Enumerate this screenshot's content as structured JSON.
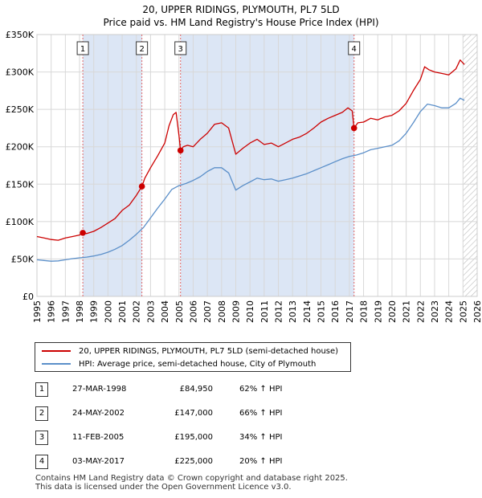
{
  "header": {
    "title": "20, UPPER RIDINGS, PLYMOUTH, PL7 5LD",
    "subtitle": "Price paid vs. HM Land Registry's House Price Index (HPI)"
  },
  "legend": {
    "property": "20, UPPER RIDINGS, PLYMOUTH, PL7 5LD (semi-detached house)",
    "hpi": "HPI: Average price, semi-detached house, City of Plymouth"
  },
  "colors": {
    "property": "#cc0000",
    "hpi": "#5b8fc9",
    "shade": "#dce6f5",
    "grid": "#d8d8d8",
    "marker_line": "#e06666"
  },
  "sales": [
    {
      "num": "1",
      "date": "27-MAR-1998",
      "price": "£84,950",
      "delta": "62% ↑ HPI"
    },
    {
      "num": "2",
      "date": "24-MAY-2002",
      "price": "£147,000",
      "delta": "66% ↑ HPI"
    },
    {
      "num": "3",
      "date": "11-FEB-2005",
      "price": "£195,000",
      "delta": "34% ↑ HPI"
    },
    {
      "num": "4",
      "date": "03-MAY-2017",
      "price": "£225,000",
      "delta": "20% ↑ HPI"
    }
  ],
  "footer": {
    "line1": "Contains HM Land Registry data © Crown copyright and database right 2025.",
    "line2": "This data is licensed under the Open Government Licence v3.0."
  },
  "chart_data": {
    "type": "line",
    "title": "20, UPPER RIDINGS, PLYMOUTH, PL7 5LD",
    "subtitle": "Price paid vs. HM Land Registry's House Price Index (HPI)",
    "xlabel": "",
    "ylabel": "",
    "xlim": [
      1995,
      2026
    ],
    "ylim": [
      0,
      350000
    ],
    "x_ticks": [
      1995,
      1996,
      1997,
      1998,
      1999,
      2000,
      2001,
      2002,
      2003,
      2004,
      2005,
      2006,
      2007,
      2008,
      2009,
      2010,
      2011,
      2012,
      2013,
      2014,
      2015,
      2016,
      2017,
      2018,
      2019,
      2020,
      2021,
      2022,
      2023,
      2024,
      2025,
      2026
    ],
    "y_ticks": [
      {
        "value": 0,
        "label": "£0"
      },
      {
        "value": 50000,
        "label": "£50K"
      },
      {
        "value": 100000,
        "label": "£100K"
      },
      {
        "value": 150000,
        "label": "£150K"
      },
      {
        "value": 200000,
        "label": "£200K"
      },
      {
        "value": 250000,
        "label": "£250K"
      },
      {
        "value": 300000,
        "label": "£300K"
      },
      {
        "value": 350000,
        "label": "£350K"
      }
    ],
    "grid": true,
    "shaded_ranges": [
      [
        1998.23,
        2002.39
      ],
      [
        2005.11,
        2017.33
      ]
    ],
    "hatched_from": 2025.0,
    "markers": [
      {
        "label": "1",
        "x": 1998.23,
        "y": 84950
      },
      {
        "label": "2",
        "x": 2002.39,
        "y": 147000
      },
      {
        "label": "3",
        "x": 2005.11,
        "y": 195000
      },
      {
        "label": "4",
        "x": 2017.33,
        "y": 225000
      }
    ],
    "series": [
      {
        "name": "20, UPPER RIDINGS, PLYMOUTH, PL7 5LD (semi-detached house)",
        "points": [
          [
            1995.0,
            80000
          ],
          [
            1995.5,
            78000
          ],
          [
            1996.0,
            76000
          ],
          [
            1996.5,
            75000
          ],
          [
            1997.0,
            78000
          ],
          [
            1997.5,
            80000
          ],
          [
            1998.0,
            82000
          ],
          [
            1998.23,
            84950
          ],
          [
            1998.5,
            84000
          ],
          [
            1999.0,
            87000
          ],
          [
            1999.5,
            92000
          ],
          [
            2000.0,
            98000
          ],
          [
            2000.5,
            104000
          ],
          [
            2001.0,
            115000
          ],
          [
            2001.5,
            122000
          ],
          [
            2002.0,
            135000
          ],
          [
            2002.39,
            147000
          ],
          [
            2002.6,
            158000
          ],
          [
            2003.0,
            172000
          ],
          [
            2003.5,
            188000
          ],
          [
            2004.0,
            205000
          ],
          [
            2004.3,
            228000
          ],
          [
            2004.6,
            243000
          ],
          [
            2004.8,
            246000
          ],
          [
            2005.0,
            215000
          ],
          [
            2005.11,
            195000
          ],
          [
            2005.3,
            200000
          ],
          [
            2005.6,
            202000
          ],
          [
            2006.0,
            200000
          ],
          [
            2006.5,
            210000
          ],
          [
            2007.0,
            218000
          ],
          [
            2007.5,
            230000
          ],
          [
            2008.0,
            232000
          ],
          [
            2008.5,
            225000
          ],
          [
            2009.0,
            190000
          ],
          [
            2009.5,
            198000
          ],
          [
            2010.0,
            205000
          ],
          [
            2010.5,
            210000
          ],
          [
            2011.0,
            203000
          ],
          [
            2011.5,
            205000
          ],
          [
            2012.0,
            200000
          ],
          [
            2012.5,
            205000
          ],
          [
            2013.0,
            210000
          ],
          [
            2013.5,
            213000
          ],
          [
            2014.0,
            218000
          ],
          [
            2014.5,
            225000
          ],
          [
            2015.0,
            233000
          ],
          [
            2015.5,
            238000
          ],
          [
            2016.0,
            242000
          ],
          [
            2016.5,
            246000
          ],
          [
            2016.9,
            252000
          ],
          [
            2017.2,
            248000
          ],
          [
            2017.33,
            225000
          ],
          [
            2017.6,
            232000
          ],
          [
            2018.0,
            233000
          ],
          [
            2018.5,
            238000
          ],
          [
            2019.0,
            236000
          ],
          [
            2019.5,
            240000
          ],
          [
            2020.0,
            242000
          ],
          [
            2020.5,
            248000
          ],
          [
            2021.0,
            258000
          ],
          [
            2021.5,
            275000
          ],
          [
            2022.0,
            290000
          ],
          [
            2022.3,
            307000
          ],
          [
            2022.6,
            303000
          ],
          [
            2023.0,
            300000
          ],
          [
            2023.5,
            298000
          ],
          [
            2024.0,
            296000
          ],
          [
            2024.5,
            304000
          ],
          [
            2024.8,
            316000
          ],
          [
            2025.1,
            310000
          ]
        ]
      },
      {
        "name": "HPI: Average price, semi-detached house, City of Plymouth",
        "points": [
          [
            1995.0,
            49000
          ],
          [
            1995.5,
            48000
          ],
          [
            1996.0,
            47000
          ],
          [
            1996.5,
            47500
          ],
          [
            1997.0,
            49000
          ],
          [
            1997.5,
            50500
          ],
          [
            1998.0,
            51500
          ],
          [
            1998.5,
            52500
          ],
          [
            1999.0,
            54000
          ],
          [
            1999.5,
            56000
          ],
          [
            2000.0,
            59000
          ],
          [
            2000.5,
            63000
          ],
          [
            2001.0,
            68000
          ],
          [
            2001.5,
            75000
          ],
          [
            2002.0,
            83000
          ],
          [
            2002.5,
            92000
          ],
          [
            2003.0,
            105000
          ],
          [
            2003.5,
            118000
          ],
          [
            2004.0,
            130000
          ],
          [
            2004.5,
            143000
          ],
          [
            2005.0,
            148000
          ],
          [
            2005.5,
            151000
          ],
          [
            2006.0,
            155000
          ],
          [
            2006.5,
            160000
          ],
          [
            2007.0,
            167000
          ],
          [
            2007.5,
            172000
          ],
          [
            2008.0,
            172000
          ],
          [
            2008.5,
            165000
          ],
          [
            2009.0,
            142000
          ],
          [
            2009.5,
            148000
          ],
          [
            2010.0,
            153000
          ],
          [
            2010.5,
            158000
          ],
          [
            2011.0,
            156000
          ],
          [
            2011.5,
            157000
          ],
          [
            2012.0,
            154000
          ],
          [
            2012.5,
            156000
          ],
          [
            2013.0,
            158000
          ],
          [
            2013.5,
            161000
          ],
          [
            2014.0,
            164000
          ],
          [
            2014.5,
            168000
          ],
          [
            2015.0,
            172000
          ],
          [
            2015.5,
            176000
          ],
          [
            2016.0,
            180000
          ],
          [
            2016.5,
            184000
          ],
          [
            2017.0,
            187000
          ],
          [
            2017.5,
            189000
          ],
          [
            2018.0,
            192000
          ],
          [
            2018.5,
            196000
          ],
          [
            2019.0,
            198000
          ],
          [
            2019.5,
            200000
          ],
          [
            2020.0,
            202000
          ],
          [
            2020.5,
            208000
          ],
          [
            2021.0,
            218000
          ],
          [
            2021.5,
            232000
          ],
          [
            2022.0,
            247000
          ],
          [
            2022.5,
            257000
          ],
          [
            2023.0,
            255000
          ],
          [
            2023.5,
            252000
          ],
          [
            2024.0,
            252000
          ],
          [
            2024.5,
            258000
          ],
          [
            2024.8,
            265000
          ],
          [
            2025.1,
            262000
          ]
        ]
      }
    ]
  }
}
